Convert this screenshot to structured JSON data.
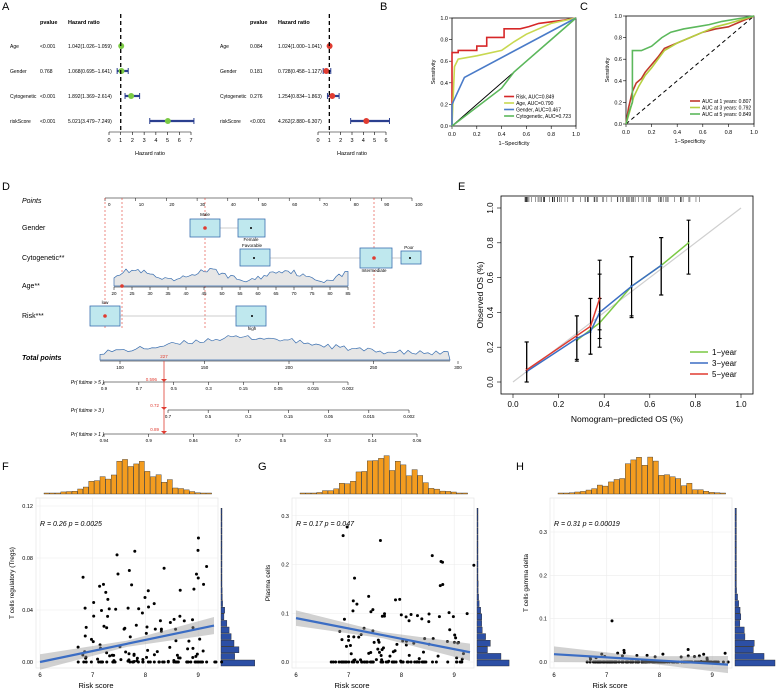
{
  "panels": [
    "A",
    "B",
    "C",
    "D",
    "E",
    "F",
    "G",
    "H"
  ],
  "forest": {
    "headers": {
      "pvalue": "pvalue",
      "hr": "Hazard ratio",
      "xlabel": "Hazard ratio"
    },
    "left": {
      "ticks": [
        "0",
        "1",
        "2",
        "3",
        "4",
        "5",
        "6",
        "7"
      ],
      "xmax": 7,
      "rows": [
        {
          "label": "Age",
          "pvalue": "<0.001",
          "hr_text": "1.042(1.026−1.059)",
          "hr": 1.042,
          "lo": 1.026,
          "hi": 1.059
        },
        {
          "label": "Gender",
          "pvalue": "0.768",
          "hr_text": "1.068(0.695−1.641)",
          "hr": 1.068,
          "lo": 0.695,
          "hi": 1.641
        },
        {
          "label": "Cytogenetic",
          "pvalue": "<0.001",
          "hr_text": "1.892(1.369−2.614)",
          "hr": 1.892,
          "lo": 1.369,
          "hi": 2.614
        },
        {
          "label": "riskScore",
          "pvalue": "<0.001",
          "hr_text": "5.021(3.479−7.249)",
          "hr": 5.021,
          "lo": 3.479,
          "hi": 7.249
        }
      ]
    },
    "right": {
      "ticks": [
        "0",
        "1",
        "2",
        "3",
        "4",
        "5",
        "6"
      ],
      "xmax": 6,
      "rows": [
        {
          "label": "Age",
          "pvalue": "0.084",
          "hr_text": "1.024(1.000−1.041)",
          "hr": 1.024,
          "lo": 1.0,
          "hi": 1.041
        },
        {
          "label": "Gender",
          "pvalue": "0.181",
          "hr_text": "0.728(0.458−1.127)",
          "hr": 0.728,
          "lo": 0.458,
          "hi": 1.127
        },
        {
          "label": "Cytogenetic",
          "pvalue": "0.276",
          "hr_text": "1.254(0.834−1.863)",
          "hr": 1.254,
          "lo": 0.834,
          "hi": 1.863
        },
        {
          "label": "riskScore",
          "pvalue": "<0.001",
          "hr_text": "4.262(2.880−6.307)",
          "hr": 4.262,
          "lo": 2.88,
          "hi": 6.307
        }
      ]
    }
  },
  "roc_b": {
    "xlabel": "1−Specificity",
    "ylabel": "Sensitivity",
    "ticks": [
      "0.0",
      "0.2",
      "0.4",
      "0.6",
      "0.8",
      "1.0"
    ],
    "legend": [
      "Risk, AUC=0.849",
      "Age, AUC=0.790",
      "Gender, AUC=0.467",
      "Cytogenetic, AUC=0.723"
    ],
    "colors": [
      "#d62728",
      "#c8d850",
      "#4a7bc8",
      "#5cb85c"
    ]
  },
  "roc_c": {
    "xlabel": "1−Specificity",
    "ylabel": "Sensitivity",
    "ticks": [
      "0.0",
      "0.2",
      "0.4",
      "0.6",
      "0.8",
      "1.0"
    ],
    "legend": [
      "AUC at 1 years: 0.807",
      "AUC at 3 years: 0.792",
      "AUC at 5 years: 0.849"
    ],
    "colors": [
      "#c0392b",
      "#b5d040",
      "#5cb85c"
    ]
  },
  "nomogram": {
    "rows": [
      "Points",
      "Gender",
      "Cytogenetic**",
      "Age**",
      "Risk***",
      "Total points",
      "Pr( futime > 5 )",
      "Pr( futime > 3 )",
      "Pr( futime > 1 )"
    ],
    "points_ticks": [
      "0",
      "10",
      "20",
      "30",
      "40",
      "50",
      "60",
      "70",
      "80",
      "90",
      "100"
    ],
    "gender_labels": [
      "Male",
      "Female"
    ],
    "cyto_labels": [
      "Favorable",
      "Intermediate",
      "Poor"
    ],
    "age_ticks": [
      "20",
      "25",
      "30",
      "35",
      "40",
      "45",
      "50",
      "55",
      "60",
      "65",
      "70",
      "75",
      "80",
      "85"
    ],
    "risk_labels": [
      "low",
      "high"
    ],
    "total_ticks": [
      "100",
      "150",
      "200",
      "250",
      "300"
    ],
    "pr5_ticks": [
      "0.9",
      "0.7",
      "0.5",
      "0.3",
      "0.15",
      "0.05",
      "0.015",
      "0.002"
    ],
    "pr5_value": "0.596",
    "pr3_ticks": [
      "0.7",
      "0.5",
      "0.3",
      "0.15",
      "0.05",
      "0.015",
      "0.002"
    ],
    "pr3_value": "0.72",
    "pr1_ticks": [
      "0.94",
      "0.9",
      "0.84",
      "0.7",
      "0.5",
      "0.3",
      "0.14",
      "0.06"
    ],
    "pr1_value": "0.89",
    "total_value": "227"
  },
  "calibration": {
    "xlabel": "Nomogram−predicted OS (%)",
    "ylabel": "Observed OS (%)",
    "ticks": [
      "0.0",
      "0.2",
      "0.4",
      "0.6",
      "0.8",
      "1.0"
    ],
    "legend": [
      "1−year",
      "3−year",
      "5−year"
    ],
    "colors": [
      "#7ac943",
      "#3b6dc4",
      "#e03c31"
    ]
  },
  "chart_data": [
    {
      "type": "bar",
      "panel": "A-left",
      "categories": [
        "Age",
        "Gender",
        "Cytogenetic",
        "riskScore"
      ],
      "values": [
        1.042,
        1.068,
        1.892,
        5.021
      ],
      "lower": [
        1.026,
        0.695,
        1.369,
        3.479
      ],
      "upper": [
        1.059,
        1.641,
        2.614,
        7.249
      ],
      "xlabel": "Hazard ratio"
    },
    {
      "type": "bar",
      "panel": "A-right",
      "categories": [
        "Age",
        "Gender",
        "Cytogenetic",
        "riskScore"
      ],
      "values": [
        1.024,
        0.728,
        1.254,
        4.262
      ],
      "lower": [
        1.0,
        0.458,
        0.834,
        2.88
      ],
      "upper": [
        1.041,
        1.127,
        1.863,
        6.307
      ],
      "xlabel": "Hazard ratio"
    },
    {
      "type": "line",
      "panel": "B",
      "xlabel": "1−Specificity",
      "ylabel": "Sensitivity",
      "xlim": [
        0,
        1
      ],
      "ylim": [
        0,
        1
      ],
      "series": [
        {
          "name": "Risk, AUC=0.849",
          "x": [
            0,
            0,
            0.05,
            0.05,
            0.2,
            0.2,
            0.28,
            0.28,
            0.42,
            0.42,
            0.55,
            0.62,
            0.7,
            0.9,
            1
          ],
          "y": [
            0,
            0.68,
            0.68,
            0.7,
            0.7,
            0.74,
            0.74,
            0.82,
            0.82,
            0.9,
            0.9,
            0.92,
            0.95,
            0.98,
            1
          ]
        },
        {
          "name": "Age, AUC=0.790",
          "x": [
            0,
            0.02,
            0.05,
            0.2,
            0.4,
            0.5,
            0.6,
            0.8,
            1
          ],
          "y": [
            0,
            0.55,
            0.62,
            0.65,
            0.7,
            0.78,
            0.85,
            0.95,
            1
          ]
        },
        {
          "name": "Gender, AUC=0.467",
          "x": [
            0,
            0,
            0.1,
            1
          ],
          "y": [
            0,
            0.2,
            0.45,
            1
          ]
        },
        {
          "name": "Cytogenetic, AUC=0.723",
          "x": [
            0,
            0.4,
            0.5,
            0.6,
            0.8,
            1
          ],
          "y": [
            0,
            0.35,
            0.5,
            0.6,
            0.8,
            1
          ]
        }
      ]
    },
    {
      "type": "line",
      "panel": "C",
      "xlabel": "1−Specificity",
      "ylabel": "Sensitivity",
      "xlim": [
        0,
        1
      ],
      "ylim": [
        0,
        1
      ],
      "series": [
        {
          "name": "AUC at 1 years: 0.807",
          "x": [
            0,
            0.02,
            0.05,
            0.08,
            0.12,
            0.15,
            0.2,
            0.25,
            0.3,
            0.4,
            0.5,
            0.6,
            0.7,
            0.8,
            0.9,
            1
          ],
          "y": [
            0,
            0.15,
            0.3,
            0.38,
            0.42,
            0.48,
            0.55,
            0.62,
            0.7,
            0.75,
            0.8,
            0.85,
            0.88,
            0.9,
            0.95,
            1
          ]
        },
        {
          "name": "AUC at 3 years: 0.792",
          "x": [
            0,
            0.03,
            0.06,
            0.1,
            0.15,
            0.2,
            0.25,
            0.3,
            0.4,
            0.5,
            0.6,
            0.7,
            0.8,
            1
          ],
          "y": [
            0,
            0.12,
            0.25,
            0.35,
            0.45,
            0.52,
            0.6,
            0.68,
            0.75,
            0.8,
            0.85,
            0.9,
            0.93,
            1
          ]
        },
        {
          "name": "AUC at 5 years: 0.849",
          "x": [
            0,
            0.02,
            0.05,
            0.05,
            0.12,
            0.2,
            0.28,
            0.35,
            0.45,
            0.55,
            0.65,
            0.75,
            0.85,
            1
          ],
          "y": [
            0,
            0.1,
            0.2,
            0.68,
            0.68,
            0.72,
            0.8,
            0.85,
            0.88,
            0.9,
            0.92,
            0.95,
            0.97,
            1
          ]
        }
      ]
    },
    {
      "type": "line",
      "panel": "E",
      "xlabel": "Nomogram−predicted OS (%)",
      "ylabel": "Observed OS (%)",
      "xlim": [
        0,
        1
      ],
      "ylim": [
        0,
        1
      ],
      "series": [
        {
          "name": "1−year",
          "x": [
            0.28,
            0.38,
            0.52,
            0.65,
            0.77
          ],
          "y": [
            0.24,
            0.34,
            0.55,
            0.67,
            0.8
          ],
          "lo": [
            0.13,
            0.2,
            0.37,
            0.5,
            0.62
          ],
          "hi": [
            0.38,
            0.48,
            0.72,
            0.83,
            0.93
          ]
        },
        {
          "name": "3−year",
          "x": [
            0.06,
            0.28,
            0.34,
            0.38,
            0.52,
            0.65
          ],
          "y": [
            0.06,
            0.25,
            0.29,
            0.4,
            0.55,
            0.67
          ],
          "lo": [
            0.0,
            0.12,
            0.16,
            0.25,
            0.38,
            0.5
          ],
          "hi": [
            0.23,
            0.38,
            0.48,
            0.62,
            0.72,
            0.83
          ]
        },
        {
          "name": "5−year",
          "x": [
            0.06,
            0.34,
            0.38
          ],
          "y": [
            0.07,
            0.32,
            0.48
          ],
          "lo": [
            0.0,
            0.16,
            0.3
          ],
          "hi": [
            0.23,
            0.48,
            0.7
          ]
        }
      ]
    },
    {
      "type": "scatter",
      "panel": "F",
      "xlabel": "Risk score",
      "ylabel": "T cells regulatory (Tregs)",
      "annotation": "R = 0.26   p = 0.0025",
      "xlim": [
        6,
        9.3
      ],
      "ylim": [
        0,
        0.12
      ],
      "xticks": [
        "6",
        "7",
        "8",
        "9"
      ],
      "yticks": [
        "0.00",
        "0.04",
        "0.08",
        "0.12"
      ],
      "fit": {
        "x": [
          6,
          9.3
        ],
        "y": [
          0.0,
          0.028
        ]
      }
    },
    {
      "type": "scatter",
      "panel": "G",
      "xlabel": "Risk score",
      "ylabel": "Plasma cells",
      "annotation": "R = 0.17   p = 0.047",
      "xlim": [
        6,
        9.3
      ],
      "ylim": [
        0,
        0.32
      ],
      "xticks": [
        "6",
        "7",
        "8",
        "9"
      ],
      "yticks": [
        "0.0",
        "0.1",
        "0.2",
        "0.3"
      ],
      "fit": {
        "x": [
          6,
          9.3
        ],
        "y": [
          0.09,
          0.02
        ]
      }
    },
    {
      "type": "scatter",
      "panel": "H",
      "xlabel": "Risk score",
      "ylabel": "T cells gamma delta",
      "annotation": "R = 0.31   p = 0.00019",
      "xlim": [
        6,
        9.3
      ],
      "ylim": [
        0,
        0.36
      ],
      "xticks": [
        "6",
        "7",
        "8",
        "9"
      ],
      "yticks": [
        "0.0",
        "0.1",
        "0.2",
        "0.3"
      ],
      "fit": {
        "x": [
          6,
          9.3
        ],
        "y": [
          0.018,
          -0.006
        ]
      }
    }
  ]
}
